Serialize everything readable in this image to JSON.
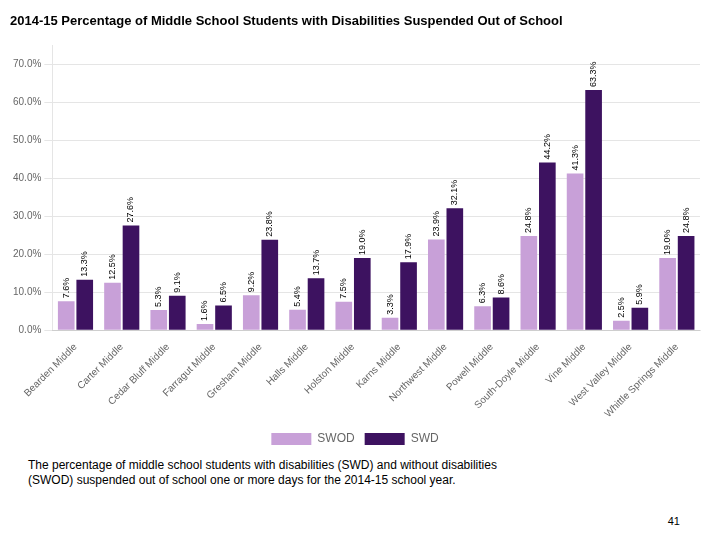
{
  "chart_data": {
    "type": "bar",
    "title": "2014-15 Percentage of Middle School Students with Disabilities Suspended Out of School",
    "categories": [
      "Bearden Middle",
      "Carter Middle",
      "Cedar Bluff Middle",
      "Farragut Middle",
      "Gresham Middle",
      "Halls Middle",
      "Holston Middle",
      "Karns Middle",
      "Northwest Middle",
      "Powell Middle",
      "South-Doyle Middle",
      "Vine Middle",
      "West Valley Middle",
      "Whittle Springs Middle"
    ],
    "series": [
      {
        "name": "SWOD",
        "color": "#c8a0d8",
        "values": [
          7.6,
          12.5,
          5.3,
          1.6,
          9.2,
          5.4,
          7.5,
          3.3,
          23.9,
          6.3,
          24.8,
          41.3,
          2.5,
          19.0
        ],
        "value_labels": [
          "7.6%",
          "12.5%",
          "5.3%",
          "1.6%",
          "9.2%",
          "5.4%",
          "7.5%",
          "3.3%",
          "23.9%",
          "6.3%",
          "24.8%",
          "41.3%",
          "2.5%",
          "19.0%"
        ]
      },
      {
        "name": "SWD",
        "color": "#3d1260",
        "values": [
          13.3,
          27.6,
          9.1,
          6.5,
          23.8,
          13.7,
          19.0,
          17.9,
          32.1,
          8.6,
          44.2,
          63.3,
          5.9,
          24.8
        ],
        "value_labels": [
          "13.3%",
          "27.6%",
          "9.1%",
          "6.5%",
          "23.8%",
          "13.7%",
          "19.0%",
          "17.9%",
          "32.1%",
          "8.6%",
          "44.2%",
          "63.3%",
          "5.9%",
          "24.8%"
        ]
      }
    ],
    "ylim": [
      0,
      75
    ],
    "yticks": [
      {
        "value": 0,
        "label": "0.0%"
      },
      {
        "value": 10,
        "label": "10.0%"
      },
      {
        "value": 20,
        "label": "20.0%"
      },
      {
        "value": 30,
        "label": "30.0%"
      },
      {
        "value": 40,
        "label": "40.0%"
      },
      {
        "value": 50,
        "label": "50.0%"
      },
      {
        "value": 60,
        "label": "60.0%"
      },
      {
        "value": 70,
        "label": "70.0%"
      }
    ],
    "grid": true,
    "legend": "bottom",
    "data_labels": true,
    "footnote": "The percentage of middle school students with disabilities (SWD) and without disabilities\n(SWOD) suspended out of school one or more days for the 2014-15 school year.",
    "page_number": "41"
  }
}
